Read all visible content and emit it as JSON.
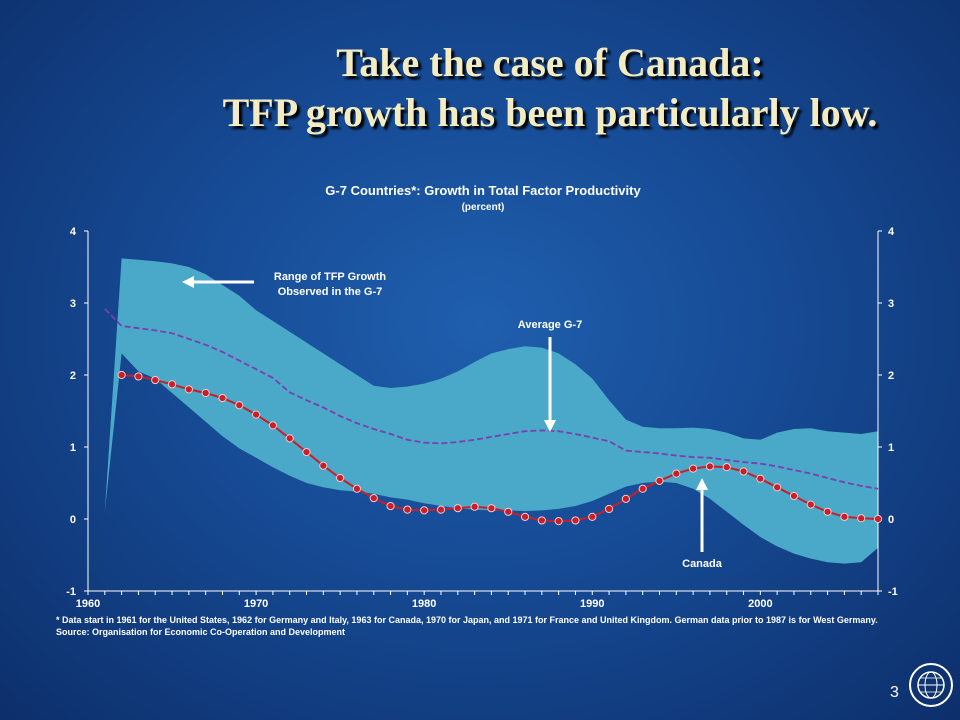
{
  "slide": {
    "title_line1": "Take the case of Canada:",
    "title_line2": "TFP growth has been particularly low.",
    "footnote": "* Data start in 1961 for the United States, 1962 for Germany and Italy, 1963 for Canada, 1970 for Japan, and 1971 for France and United Kingdom.  German data prior to 1987 is for West Germany.  Source:  Organisation for Economic Co-Operation and Development",
    "page_number": "3",
    "logo": "imf-seal-icon",
    "colors": {
      "background": "#164a94",
      "title": "#f3ecc2",
      "range_band": "#4aa8c8",
      "average_line": "#7a3fb0",
      "canada_line": "#c81f2a"
    }
  },
  "chart_data": {
    "type": "area",
    "title": "G-7 Countries*:  Growth in Total Factor Productivity",
    "subtitle": "(percent)",
    "xlabel": "",
    "ylabel": "",
    "xlim": [
      1960,
      2007
    ],
    "ylim": [
      -1,
      4
    ],
    "x_ticks": [
      "1960",
      "1970",
      "1980",
      "1990",
      "2000"
    ],
    "y_ticks": [
      "-1",
      "0",
      "1",
      "2",
      "3",
      "4"
    ],
    "grid": false,
    "axes": "left and right y-axes mirrored",
    "range": {
      "label_line1": "Range of TFP Growth",
      "label_line2": "Observed in the G-7",
      "x": [
        1961,
        1962,
        1963,
        1964,
        1965,
        1966,
        1967,
        1968,
        1969,
        1970,
        1971,
        1972,
        1973,
        1974,
        1975,
        1976,
        1977,
        1978,
        1979,
        1980,
        1981,
        1982,
        1983,
        1984,
        1985,
        1986,
        1987,
        1988,
        1989,
        1990,
        1991,
        1992,
        1993,
        1994,
        1995,
        1996,
        1997,
        1998,
        1999,
        2000,
        2001,
        2002,
        2003,
        2004,
        2005,
        2006,
        2007
      ],
      "upper": [
        0.1,
        3.62,
        3.6,
        3.58,
        3.55,
        3.5,
        3.4,
        3.25,
        3.1,
        2.9,
        2.75,
        2.6,
        2.45,
        2.3,
        2.15,
        2.0,
        1.85,
        1.82,
        1.84,
        1.88,
        1.95,
        2.05,
        2.18,
        2.3,
        2.36,
        2.4,
        2.38,
        2.3,
        2.15,
        1.95,
        1.65,
        1.38,
        1.28,
        1.26,
        1.26,
        1.27,
        1.25,
        1.2,
        1.12,
        1.1,
        1.2,
        1.25,
        1.26,
        1.22,
        1.2,
        1.18,
        1.22
      ],
      "lower": [
        0.1,
        2.3,
        2.05,
        1.95,
        1.75,
        1.55,
        1.35,
        1.15,
        0.98,
        0.85,
        0.72,
        0.6,
        0.5,
        0.44,
        0.4,
        0.38,
        0.35,
        0.3,
        0.27,
        0.22,
        0.18,
        0.15,
        0.13,
        0.12,
        0.12,
        0.11,
        0.12,
        0.14,
        0.18,
        0.25,
        0.35,
        0.45,
        0.5,
        0.52,
        0.5,
        0.42,
        0.28,
        0.1,
        -0.08,
        -0.25,
        -0.38,
        -0.48,
        -0.55,
        -0.6,
        -0.62,
        -0.6,
        -0.4
      ]
    },
    "series": [
      {
        "name": "Average G-7",
        "style": "dashed",
        "x": [
          1961,
          1962,
          1963,
          1964,
          1965,
          1966,
          1967,
          1968,
          1969,
          1970,
          1971,
          1972,
          1973,
          1974,
          1975,
          1976,
          1977,
          1978,
          1979,
          1980,
          1981,
          1982,
          1983,
          1984,
          1985,
          1986,
          1987,
          1988,
          1989,
          1990,
          1991,
          1992,
          1993,
          1994,
          1995,
          1996,
          1997,
          1998,
          1999,
          2000,
          2001,
          2002,
          2003,
          2004,
          2005,
          2006,
          2007
        ],
        "values": [
          2.92,
          2.68,
          2.65,
          2.62,
          2.58,
          2.5,
          2.42,
          2.32,
          2.2,
          2.08,
          1.96,
          1.76,
          1.65,
          1.55,
          1.43,
          1.33,
          1.25,
          1.18,
          1.1,
          1.06,
          1.05,
          1.07,
          1.1,
          1.14,
          1.18,
          1.22,
          1.23,
          1.22,
          1.18,
          1.13,
          1.08,
          0.95,
          0.93,
          0.91,
          0.88,
          0.86,
          0.85,
          0.82,
          0.79,
          0.77,
          0.73,
          0.68,
          0.63,
          0.57,
          0.51,
          0.46,
          0.42
        ]
      },
      {
        "name": "Canada",
        "style": "solid-with-markers",
        "x": [
          1962,
          1963,
          1964,
          1965,
          1966,
          1967,
          1968,
          1969,
          1970,
          1971,
          1972,
          1973,
          1974,
          1975,
          1976,
          1977,
          1978,
          1979,
          1980,
          1981,
          1982,
          1983,
          1984,
          1985,
          1986,
          1987,
          1988,
          1989,
          1990,
          1991,
          1992,
          1993,
          1994,
          1995,
          1996,
          1997,
          1998,
          1999,
          2000,
          2001,
          2002,
          2003,
          2004,
          2005,
          2006,
          2007
        ],
        "values": [
          2.0,
          1.98,
          1.93,
          1.87,
          1.8,
          1.75,
          1.68,
          1.58,
          1.45,
          1.3,
          1.12,
          0.93,
          0.74,
          0.57,
          0.42,
          0.29,
          0.18,
          0.13,
          0.12,
          0.13,
          0.15,
          0.17,
          0.15,
          0.1,
          0.03,
          -0.02,
          -0.03,
          -0.02,
          0.03,
          0.14,
          0.28,
          0.42,
          0.53,
          0.63,
          0.7,
          0.73,
          0.72,
          0.66,
          0.56,
          0.44,
          0.32,
          0.2,
          0.1,
          0.03,
          0.01,
          0.0
        ]
      }
    ],
    "annotations": [
      {
        "text": "Average G-7",
        "arrow": "down"
      },
      {
        "text": "Canada",
        "arrow": "up"
      }
    ]
  }
}
